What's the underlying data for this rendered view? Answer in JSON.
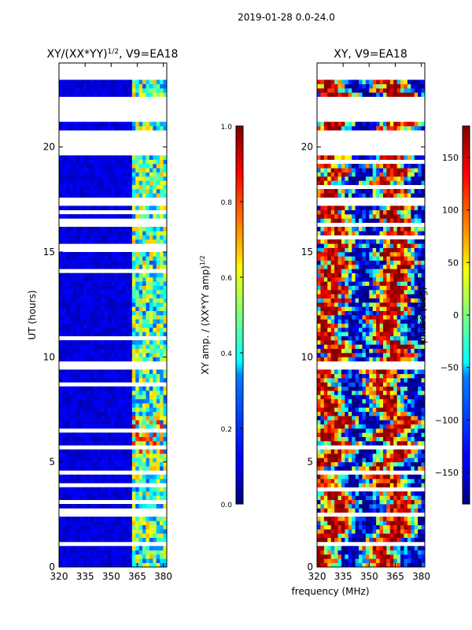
{
  "figure": {
    "suptitle": "2019-01-28 0.0-24.0",
    "xlabel": "frequency (MHz)"
  },
  "chart_data": [
    {
      "type": "heatmap",
      "title_main": "XY/(XX*YY)",
      "title_sup": "1/2",
      "title_tail": ", V9=EA18",
      "ylabel": "UT (hours)",
      "xlim": [
        320,
        382
      ],
      "ylim": [
        0,
        24
      ],
      "xticks": [
        "320",
        "335",
        "350",
        "365",
        "380"
      ],
      "xtick_values": [
        320,
        335,
        350,
        365,
        380
      ],
      "yticks": [
        "0",
        "5",
        "10",
        "15",
        "20"
      ],
      "ytick_values": [
        0,
        5,
        10,
        15,
        20
      ],
      "colormap": "jet",
      "colorbar": {
        "label_main": "XY amp. / (XX*YY amp)",
        "label_sup": "1/2",
        "range": [
          0.0,
          1.0
        ],
        "ticks": [
          "0.0",
          "0.2",
          "0.4",
          "0.6",
          "0.8",
          "1.0"
        ],
        "tick_values": [
          0.0,
          0.2,
          0.4,
          0.6,
          0.8,
          1.0
        ]
      },
      "blank_ut_ranges": [
        [
          0.95,
          1.15
        ],
        [
          2.4,
          2.6
        ],
        [
          4.5,
          4.6
        ],
        [
          9.4,
          9.8
        ],
        [
          17.2,
          17.6
        ],
        [
          19.6,
          20.9
        ],
        [
          21.15,
          22.4
        ],
        [
          23.3,
          24.0
        ]
      ],
      "bright_band_mhz": [
        362,
        382
      ],
      "typical_value": 0.05,
      "band_value_range": [
        0.2,
        0.7
      ]
    },
    {
      "type": "heatmap",
      "title": "XY, V9=EA18",
      "xlim": [
        320,
        382
      ],
      "ylim": [
        0,
        24
      ],
      "xticks": [
        "320",
        "335",
        "350",
        "365",
        "380"
      ],
      "xtick_values": [
        320,
        335,
        350,
        365,
        380
      ],
      "yticks": [
        "0",
        "5",
        "10",
        "15",
        "20"
      ],
      "ytick_values": [
        0,
        5,
        10,
        15,
        20
      ],
      "colormap": "jet",
      "colorbar": {
        "label": "phase (deg)",
        "range": [
          -180,
          180
        ],
        "ticks": [
          "−150",
          "−100",
          "−50",
          "0",
          "50",
          "100",
          "150"
        ],
        "tick_values": [
          -150,
          -100,
          -50,
          0,
          50,
          100,
          150
        ]
      },
      "blank_ut_ranges": [
        [
          0.95,
          1.15
        ],
        [
          2.4,
          2.6
        ],
        [
          4.5,
          4.6
        ],
        [
          9.4,
          9.8
        ],
        [
          17.2,
          17.6
        ],
        [
          19.6,
          20.9
        ],
        [
          21.15,
          22.4
        ],
        [
          23.3,
          24.0
        ]
      ],
      "value_range": [
        -180,
        180
      ]
    }
  ]
}
